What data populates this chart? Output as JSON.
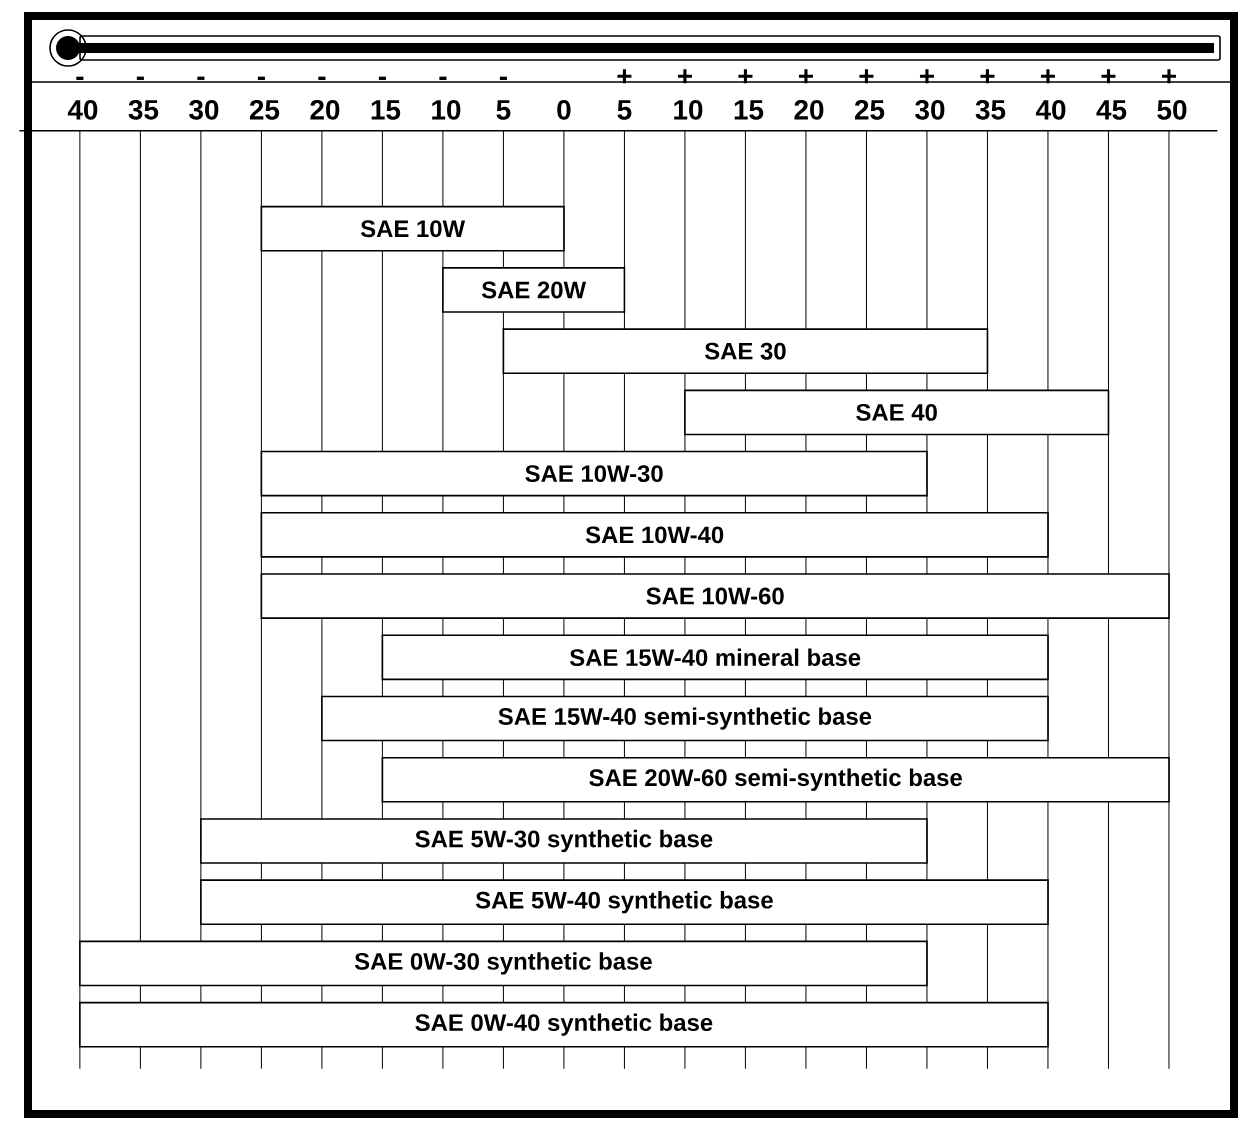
{
  "chart_data": {
    "type": "bar",
    "orientation": "horizontal",
    "categories": [
      "SAE 10W",
      "SAE 20W",
      "SAE 30",
      "SAE 40",
      "SAE 10W-30",
      "SAE 10W-40",
      "SAE 10W-60",
      "SAE 15W-40 mineral base",
      "SAE 15W-40 semi-synthetic base",
      "SAE 20W-60 semi-synthetic base",
      "SAE 5W-30 synthetic base",
      "SAE 5W-40 synthetic base",
      "SAE 0W-30 synthetic base",
      "SAE 0W-40 synthetic base"
    ],
    "base": [
      -25,
      -10,
      -5,
      10,
      -25,
      -25,
      -25,
      -15,
      -20,
      -15,
      -30,
      -30,
      -40,
      -40
    ],
    "values": [
      25,
      15,
      40,
      35,
      55,
      65,
      75,
      55,
      60,
      65,
      60,
      70,
      70,
      80
    ],
    "color": "#ffffff",
    "xlim": [
      -45,
      54
    ],
    "xticks": [
      {
        "value": -40,
        "label": "- 40"
      },
      {
        "value": -35,
        "label": "- 35"
      },
      {
        "value": -30,
        "label": "- 30"
      },
      {
        "value": -25,
        "label": "- 25"
      },
      {
        "value": -20,
        "label": "- 20"
      },
      {
        "value": -15,
        "label": "- 15"
      },
      {
        "value": -10,
        "label": "- 10"
      },
      {
        "value": -5,
        "label": "- 5"
      },
      0,
      {
        "value": 5,
        "label": "+ 5"
      },
      {
        "value": 10,
        "label": "+ 10"
      },
      {
        "value": 15,
        "label": "+ 15"
      },
      {
        "value": 20,
        "label": "+ 20"
      },
      {
        "value": 25,
        "label": "+ 25"
      },
      {
        "value": 30,
        "label": "+ 30"
      },
      {
        "value": 35,
        "label": "+ 35"
      },
      {
        "value": 40,
        "label": "+ 40"
      },
      {
        "value": 45,
        "label": "+ 45"
      },
      {
        "value": 50,
        "label": "+ 50"
      }
    ],
    "grid": "x"
  }
}
